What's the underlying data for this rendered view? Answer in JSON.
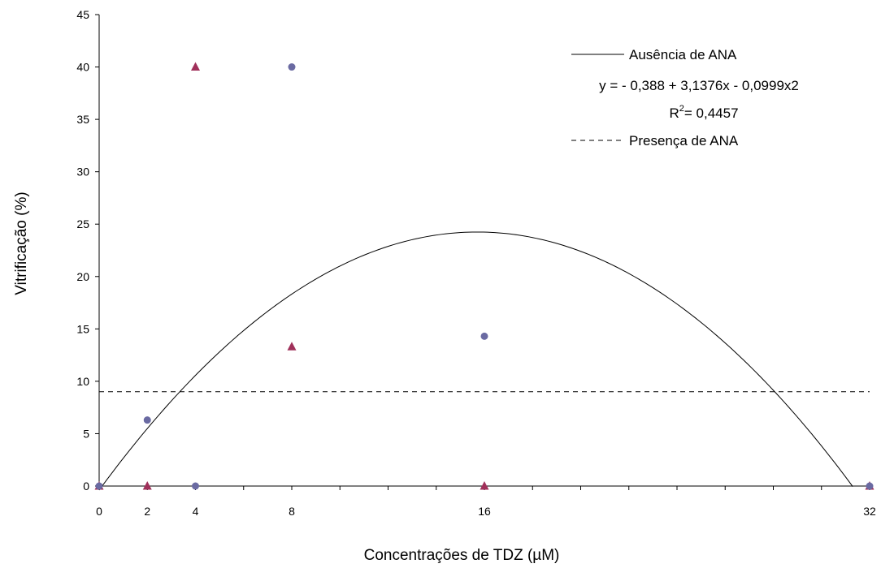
{
  "chart_data": {
    "type": "scatter",
    "xlabel": "Concentrações de TDZ (µM)",
    "ylabel": "Vitrificação (%)",
    "xlim": [
      0,
      32
    ],
    "ylim": [
      0,
      45
    ],
    "x_ticks": [
      0,
      2,
      4,
      8,
      16,
      32
    ],
    "x_tick_labels": [
      "0",
      "2",
      "4",
      "8",
      "16",
      "32"
    ],
    "y_ticks": [
      0,
      5,
      10,
      15,
      20,
      25,
      30,
      35,
      40,
      45
    ],
    "y_tick_labels": [
      "0",
      "5",
      "10",
      "15",
      "20",
      "25",
      "30",
      "35",
      "40",
      "45"
    ],
    "grid": false,
    "legend_position": "top-right",
    "series": [
      {
        "name": "Ausência de ANA",
        "marker": "circle",
        "color": "#6a6aa2",
        "x": [
          0,
          2,
          4,
          8,
          16,
          32
        ],
        "y": [
          0,
          6.3,
          0,
          40,
          14.3,
          0
        ]
      },
      {
        "name": "Presença de ANA",
        "marker": "triangle",
        "color": "#a0305a",
        "x": [
          0,
          2,
          4,
          8,
          16,
          32
        ],
        "y": [
          0,
          0,
          40,
          13.3,
          0,
          0
        ]
      }
    ],
    "trendlines": [
      {
        "series": "Ausência de ANA",
        "style": "solid",
        "equation": "y = - 0,388 + 3,1376x - 0,0999x2",
        "r2_label": "R",
        "r2_sup": "2",
        "r2_value": "= 0,4457",
        "coefficients": [
          -0.388,
          3.1376,
          -0.0999
        ],
        "x_range": [
          0,
          31.3
        ]
      },
      {
        "series": "Presença de ANA",
        "style": "dashed",
        "constant": 9,
        "x_range": [
          0,
          32
        ]
      }
    ]
  }
}
